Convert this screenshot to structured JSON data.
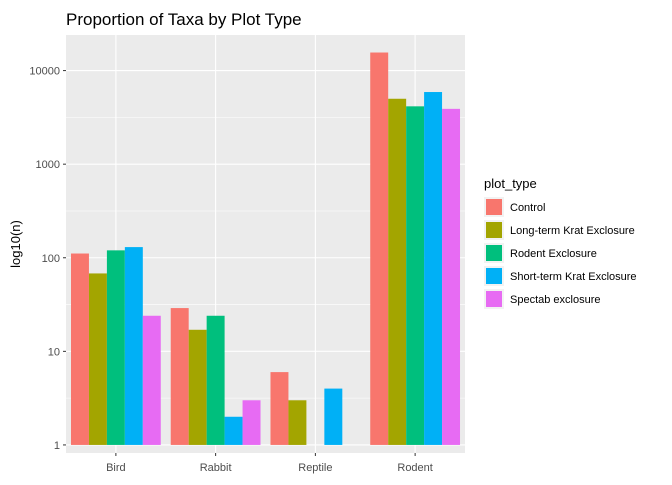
{
  "chart_data": {
    "type": "bar",
    "title": "Proportion of Taxa by Plot Type",
    "xlabel": "",
    "ylabel": "log10(n)",
    "y_scale": "log10",
    "ylim": [
      0.82,
      24000
    ],
    "y_ticks": [
      1,
      10,
      100,
      1000,
      10000
    ],
    "y_tick_labels": [
      "1",
      "10",
      "100",
      "1000",
      "10000"
    ],
    "grid": true,
    "legend_position": "right",
    "legend_title": "plot_type",
    "categories": [
      "Bird",
      "Rabbit",
      "Reptile",
      "Rodent"
    ],
    "series": [
      {
        "name": "Control",
        "color": "#F8766D",
        "values": [
          111,
          29,
          6,
          15600
        ]
      },
      {
        "name": "Long-term Krat Exclosure",
        "color": "#A3A500",
        "values": [
          68,
          17,
          3,
          5000
        ]
      },
      {
        "name": "Rodent Exclosure",
        "color": "#00BF7D",
        "values": [
          120,
          24,
          null,
          4150
        ]
      },
      {
        "name": "Short-term Krat Exclosure",
        "color": "#00B0F6",
        "values": [
          130,
          2,
          4,
          5900
        ]
      },
      {
        "name": "Spectab exclosure",
        "color": "#E76BF3",
        "values": [
          24,
          3,
          null,
          3900
        ]
      }
    ]
  }
}
